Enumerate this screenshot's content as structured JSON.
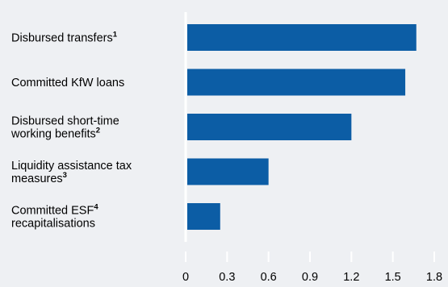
{
  "chart_data": {
    "type": "bar",
    "orientation": "horizontal",
    "categories": [
      {
        "lines": [
          {
            "text": "Disbursed transfers",
            "sup": "1"
          }
        ]
      },
      {
        "lines": [
          {
            "text": "Committed KfW loans",
            "sup": ""
          }
        ]
      },
      {
        "lines": [
          {
            "text": "Disbursed short-time",
            "sup": ""
          },
          {
            "text": "working benefits",
            "sup": "2"
          }
        ]
      },
      {
        "lines": [
          {
            "text": "Liquidity assistance tax",
            "sup": ""
          },
          {
            "text": "measures",
            "sup": "3"
          }
        ]
      },
      {
        "lines": [
          {
            "text": "Committed ESF",
            "sup": "4"
          },
          {
            "text": "recapitalisations",
            "sup": ""
          }
        ]
      }
    ],
    "values": [
      1.67,
      1.59,
      1.2,
      0.6,
      0.25
    ],
    "x_ticks": [
      "0",
      "0.3",
      "0.6",
      "0.9",
      "1.2",
      "1.5",
      "1.8"
    ],
    "xlim": [
      0,
      1.8
    ],
    "grid": false,
    "colors": {
      "bar": "#0c5da5",
      "axis": "#ffffff",
      "background": "#eef0f3"
    }
  }
}
